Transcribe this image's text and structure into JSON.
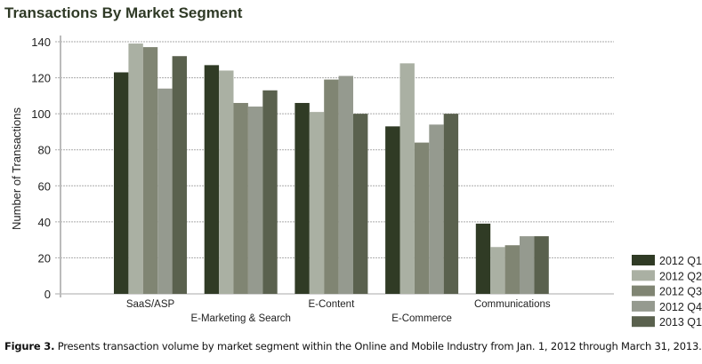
{
  "chart_data": {
    "type": "bar",
    "title": "Transactions By Market Segment",
    "xlabel": "",
    "ylabel": "Number of Transactions",
    "ylim": [
      0,
      140
    ],
    "yticks": [
      0,
      20,
      40,
      60,
      80,
      100,
      120,
      140
    ],
    "grid": true,
    "legend": "bottom-right",
    "categories": [
      "SaaS/ASP",
      "E-Marketing & Search",
      "E-Content",
      "E-Commerce",
      "Communications"
    ],
    "series": [
      {
        "name": "2012 Q1",
        "color": "#303b25",
        "values": [
          123,
          127,
          106,
          93,
          39
        ]
      },
      {
        "name": "2012 Q2",
        "color": "#aab0a3",
        "values": [
          139,
          124,
          101,
          128,
          26
        ]
      },
      {
        "name": "2012 Q3",
        "color": "#808573",
        "values": [
          137,
          106,
          119,
          84,
          27
        ]
      },
      {
        "name": "2012 Q4",
        "color": "#959a8f",
        "values": [
          114,
          104,
          121,
          94,
          32
        ]
      },
      {
        "name": "2013 Q1",
        "color": "#5a614e",
        "values": [
          132,
          113,
          100,
          100,
          32
        ]
      }
    ]
  },
  "caption": {
    "label": "Figure 3.",
    "text": " Presents transaction volume by market segment within the Online and Mobile Industry from Jan. 1, 2012 through March 31, 2013."
  }
}
